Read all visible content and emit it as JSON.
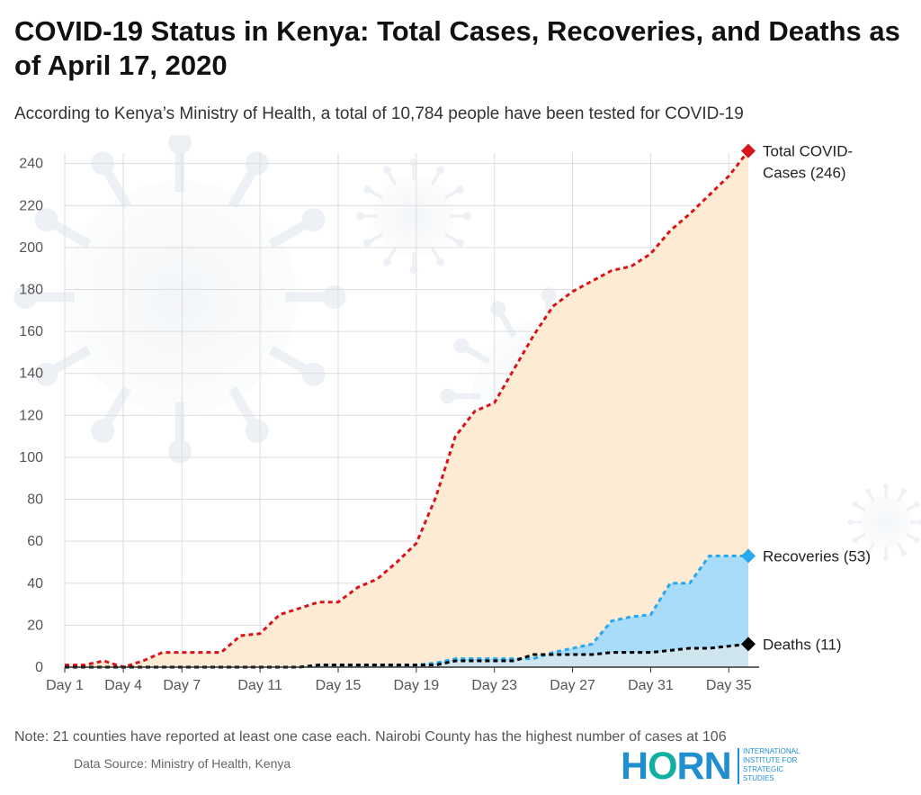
{
  "header": {
    "title": "COVID-19 Status in Kenya: Total Cases, Recoveries, and Deaths as of April 17, 2020",
    "subtitle": "According to Kenya’s Ministry of Health, a total of 10,784 people have been tested for COVID-19"
  },
  "footer": {
    "note": "Note: 21 counties have reported at least one case each. Nairobi County has the highest number of cases at 106",
    "source": "Data Source: Ministry of Health, Kenya",
    "logo_word": "HORN",
    "logo_lines": [
      "INTERNATIONAL",
      "INSTITUTE FOR",
      "STRATEGIC",
      "STUDIES"
    ]
  },
  "chart_data": {
    "type": "area",
    "title": "COVID-19 Status in Kenya: Total Cases, Recoveries, and Deaths as of April 17, 2020",
    "xlabel": "",
    "ylabel": "",
    "xlim": [
      1,
      36
    ],
    "ylim": [
      0,
      245
    ],
    "grid": true,
    "x_ticks": [
      1,
      4,
      7,
      11,
      15,
      19,
      23,
      27,
      31,
      35
    ],
    "x_tick_labels": [
      "Day 1",
      "Day 4",
      "Day 7",
      "Day 11",
      "Day 15",
      "Day 19",
      "Day 23",
      "Day 27",
      "Day 31",
      "Day 35"
    ],
    "y_ticks": [
      0,
      20,
      40,
      60,
      80,
      100,
      120,
      140,
      160,
      180,
      200,
      220,
      240
    ],
    "x": [
      1,
      2,
      3,
      4,
      5,
      6,
      7,
      8,
      9,
      10,
      11,
      12,
      13,
      14,
      15,
      16,
      17,
      18,
      19,
      20,
      21,
      22,
      23,
      24,
      25,
      26,
      27,
      28,
      29,
      30,
      31,
      32,
      33,
      34,
      35,
      36
    ],
    "series": [
      {
        "name": "Total COVID-Cases",
        "end_label_lines": [
          "Total COVID-",
          "Cases (246)"
        ],
        "color": "#d7141b",
        "fill": "#fdebd3",
        "values": [
          1,
          1,
          3,
          0,
          3,
          7,
          7,
          7,
          7,
          15,
          16,
          25,
          28,
          31,
          31,
          38,
          42,
          50,
          59,
          81,
          110,
          122,
          126,
          142,
          158,
          172,
          179,
          184,
          189,
          191,
          197,
          208,
          216,
          225,
          234,
          246
        ]
      },
      {
        "name": "Recoveries",
        "end_label_lines": [
          "Recoveries (53)"
        ],
        "color": "#29a8ee",
        "fill": "#a9dcfb",
        "values": [
          0,
          0,
          0,
          0,
          0,
          0,
          0,
          0,
          0,
          0,
          0,
          0,
          0,
          1,
          1,
          1,
          1,
          1,
          1,
          2,
          4,
          4,
          4,
          4,
          4,
          7,
          9,
          11,
          22,
          24,
          25,
          40,
          40,
          53,
          53,
          53
        ]
      },
      {
        "name": "Deaths",
        "end_label_lines": [
          "Deaths (11)"
        ],
        "color": "#000000",
        "fill": "#cfe6ef",
        "values": [
          0,
          0,
          0,
          0,
          0,
          0,
          0,
          0,
          0,
          0,
          0,
          0,
          0,
          1,
          1,
          1,
          1,
          1,
          1,
          1,
          3,
          3,
          3,
          3,
          6,
          6,
          6,
          6,
          7,
          7,
          7,
          8,
          9,
          9,
          10,
          11
        ]
      }
    ],
    "colors": {
      "grid": "#dddddd",
      "axis": "#333333",
      "tick_text": "#555555",
      "label_text": "#222222"
    }
  }
}
